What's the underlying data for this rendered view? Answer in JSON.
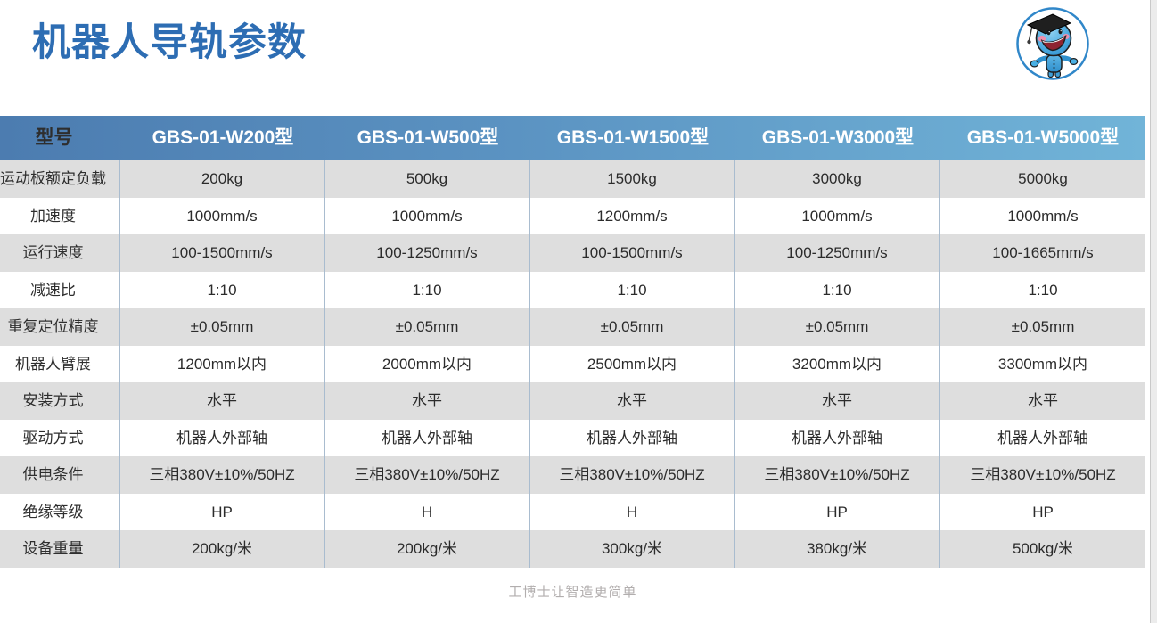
{
  "page": {
    "title": "机器人导轨参数",
    "footer": "工博士让智造更简单"
  },
  "colors": {
    "title_blue": "#2d6db3",
    "header_gradient_left": "#4c7cb0",
    "header_gradient_right": "#71b4d8",
    "header_text": "#ffffff",
    "row_stripe_gray": "#dedede",
    "row_stripe_white": "#ffffff",
    "column_divider": "#a9bccf",
    "body_text": "#2b2b2b",
    "footer_text": "#b2aeae",
    "logo_blue": "#3aa0dc"
  },
  "logo": {
    "icon": "gongboshi-mascot-graduate-icon"
  },
  "table": {
    "header": {
      "label_col": "型号",
      "models": [
        "GBS-01-W200型",
        "GBS-01-W500型",
        "GBS-01-W1500型",
        "GBS-01-W3000型",
        "GBS-01-W5000型"
      ]
    },
    "rows": [
      {
        "label": "运动板额定负载",
        "values": [
          "200kg",
          "500kg",
          "1500kg",
          "3000kg",
          "5000kg"
        ]
      },
      {
        "label": "加速度",
        "values": [
          "1000mm/s",
          "1000mm/s",
          "1200mm/s",
          "1000mm/s",
          "1000mm/s"
        ]
      },
      {
        "label": "运行速度",
        "values": [
          "100-1500mm/s",
          "100-1250mm/s",
          "100-1500mm/s",
          "100-1250mm/s",
          "100-1665mm/s"
        ]
      },
      {
        "label": "减速比",
        "values": [
          "1:10",
          "1:10",
          "1:10",
          "1:10",
          "1:10"
        ]
      },
      {
        "label": "重复定位精度",
        "values": [
          "±0.05mm",
          "±0.05mm",
          "±0.05mm",
          "±0.05mm",
          "±0.05mm"
        ]
      },
      {
        "label": "机器人臂展",
        "values": [
          "1200mm以内",
          "2000mm以内",
          "2500mm以内",
          "3200mm以内",
          "3300mm以内"
        ]
      },
      {
        "label": "安装方式",
        "values": [
          "水平",
          "水平",
          "水平",
          "水平",
          "水平"
        ]
      },
      {
        "label": "驱动方式",
        "values": [
          "机器人外部轴",
          "机器人外部轴",
          "机器人外部轴",
          "机器人外部轴",
          "机器人外部轴"
        ]
      },
      {
        "label": "供电条件",
        "values": [
          "三相380V±10%/50HZ",
          "三相380V±10%/50HZ",
          "三相380V±10%/50HZ",
          "三相380V±10%/50HZ",
          "三相380V±10%/50HZ"
        ]
      },
      {
        "label": "绝缘等级",
        "values": [
          "HP",
          "H",
          "H",
          "HP",
          "HP"
        ]
      },
      {
        "label": "设备重量",
        "values": [
          "200kg/米",
          "200kg/米",
          "300kg/米",
          "380kg/米",
          "500kg/米"
        ]
      }
    ]
  }
}
